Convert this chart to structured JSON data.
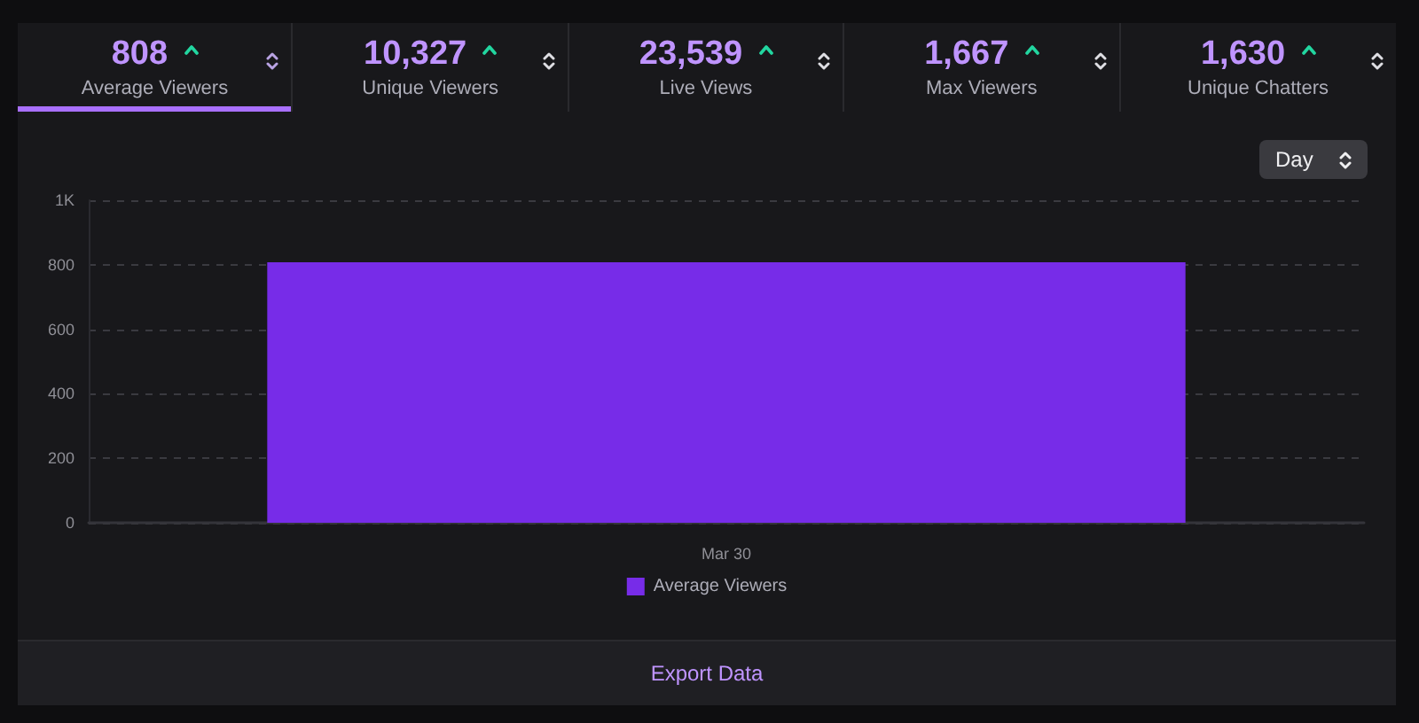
{
  "chart_data": [
    {
      "type": "other",
      "annotations": [
        "808",
        "Average Viewers",
        "10,327",
        "Unique Viewers",
        "23,539",
        "Live Views",
        "1,667",
        "Max Viewers",
        "1,630",
        "Unique Chatters"
      ]
    },
    {
      "type": "bar",
      "categories": [
        "Mar 30"
      ],
      "series": [
        {
          "name": "Average Viewers",
          "color": "#772ce8",
          "values": [
            808
          ]
        }
      ],
      "ylim": [
        0,
        1000
      ],
      "yticks": [
        0,
        200,
        400,
        600,
        800,
        {
          "value": 1000,
          "label": "1K"
        }
      ],
      "grid": "y",
      "legend": "bottom",
      "annotations": [
        "Day",
        "Export Data"
      ]
    }
  ]
}
